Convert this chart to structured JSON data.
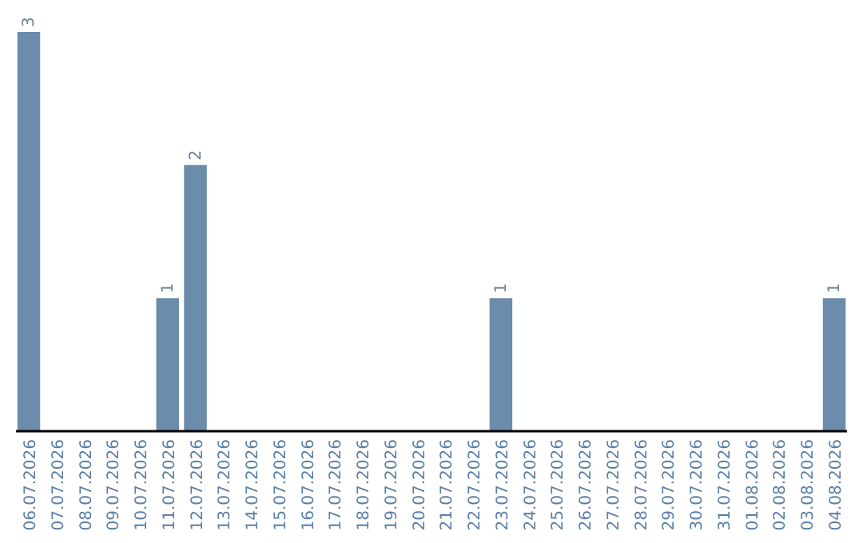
{
  "chart_data": {
    "type": "bar",
    "categories": [
      "06.07.2026",
      "07.07.2026",
      "08.07.2026",
      "09.07.2026",
      "10.07.2026",
      "11.07.2026",
      "12.07.2026",
      "13.07.2026",
      "14.07.2026",
      "15.07.2026",
      "16.07.2026",
      "17.07.2026",
      "18.07.2026",
      "19.07.2026",
      "20.07.2026",
      "21.07.2026",
      "22.07.2026",
      "23.07.2026",
      "24.07.2026",
      "25.07.2026",
      "26.07.2026",
      "27.07.2026",
      "28.07.2026",
      "29.07.2026",
      "30.07.2026",
      "31.07.2026",
      "01.08.2026",
      "02.08.2026",
      "03.08.2026",
      "04.08.2026"
    ],
    "values": [
      3,
      0,
      0,
      0,
      0,
      1,
      2,
      0,
      0,
      0,
      0,
      0,
      0,
      0,
      0,
      0,
      0,
      1,
      0,
      0,
      0,
      0,
      0,
      0,
      0,
      0,
      0,
      0,
      0,
      1
    ],
    "value_labels": [
      "3",
      null,
      null,
      null,
      null,
      "1",
      "2",
      null,
      null,
      null,
      null,
      null,
      null,
      null,
      null,
      null,
      null,
      "1",
      null,
      null,
      null,
      null,
      null,
      null,
      null,
      null,
      null,
      null,
      null,
      "1"
    ],
    "color": "#6b8cab"
  }
}
